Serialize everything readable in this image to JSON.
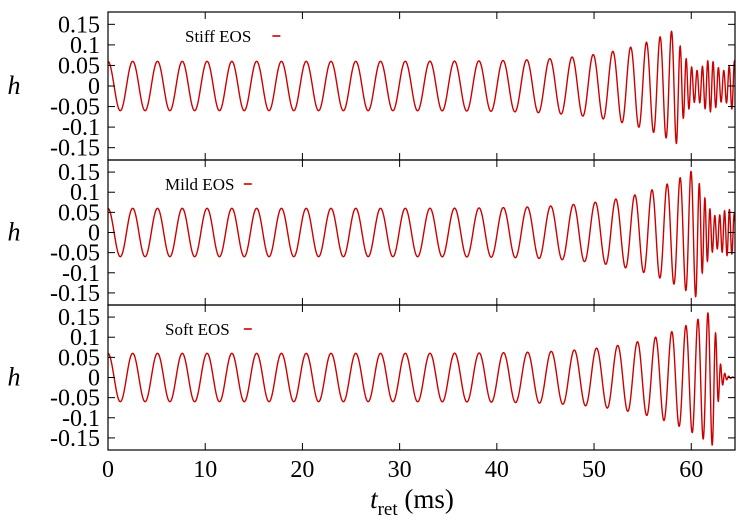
{
  "chart_data": [
    {
      "type": "line",
      "title": "",
      "ylabel": "h",
      "xlim": [
        0,
        64.5
      ],
      "ylim": [
        -0.18,
        0.18
      ],
      "yticks": [
        0.15,
        0.1,
        0.05,
        0,
        -0.05,
        -0.1,
        -0.15
      ],
      "ytick_labels": [
        "0.15",
        "0.1",
        "0.05",
        "0",
        "-0.05",
        "-0.1",
        "-0.15"
      ],
      "legend_position": "top-left",
      "series": [
        {
          "name": "Stiff EOS",
          "color": "#cc0000",
          "signal": {
            "merger_time": 58.5,
            "end_time": 64.5,
            "base_amplitude": 0.06,
            "peak_amplitude": 0.14,
            "base_period_ms": 2.55,
            "merger_period_ms": 0.95,
            "ringdown_amplitude": 0.05,
            "ringdown_period_ms": 0.55,
            "ringdown_decay_ms": 0
          }
        }
      ]
    },
    {
      "type": "line",
      "title": "",
      "ylabel": "h",
      "xlim": [
        0,
        64.5
      ],
      "ylim": [
        -0.18,
        0.18
      ],
      "yticks": [
        0.15,
        0.1,
        0.05,
        0,
        -0.05,
        -0.1,
        -0.15
      ],
      "ytick_labels": [
        "0.15",
        "0.1",
        "0.05",
        "0",
        "-0.05",
        "-0.1",
        "-0.15"
      ],
      "legend_position": "top-left",
      "series": [
        {
          "name": "Mild EOS",
          "color": "#cc0000",
          "signal": {
            "merger_time": 60.5,
            "end_time": 64.5,
            "base_amplitude": 0.06,
            "peak_amplitude": 0.16,
            "base_period_ms": 2.55,
            "merger_period_ms": 0.9,
            "ringdown_amplitude": 0.07,
            "ringdown_period_ms": 0.5,
            "ringdown_decay_ms": 8
          }
        }
      ]
    },
    {
      "type": "line",
      "title": "",
      "ylabel": "h",
      "xlim": [
        0,
        64.5
      ],
      "ylim": [
        -0.18,
        0.18
      ],
      "yticks": [
        0.15,
        0.1,
        0.05,
        0,
        -0.05,
        -0.1,
        -0.15
      ],
      "ytick_labels": [
        "0.15",
        "0.1",
        "0.05",
        "0",
        "-0.05",
        "-0.1",
        "-0.15"
      ],
      "legend_position": "top-left",
      "series": [
        {
          "name": "Soft EOS",
          "color": "#cc0000",
          "signal": {
            "merger_time": 62.3,
            "end_time": 64.5,
            "base_amplitude": 0.06,
            "peak_amplitude": 0.17,
            "base_period_ms": 2.55,
            "merger_period_ms": 0.8,
            "ringdown_amplitude": 0.015,
            "ringdown_period_ms": 0.4,
            "ringdown_decay_ms": 0.7
          }
        }
      ]
    }
  ],
  "x_axis": {
    "label_main": "t",
    "label_sub": "ret",
    "label_unit": " (ms)",
    "ticks": [
      0,
      10,
      20,
      30,
      40,
      50,
      60
    ],
    "tick_labels": [
      "0",
      "10",
      "20",
      "30",
      "40",
      "50",
      "60"
    ]
  }
}
